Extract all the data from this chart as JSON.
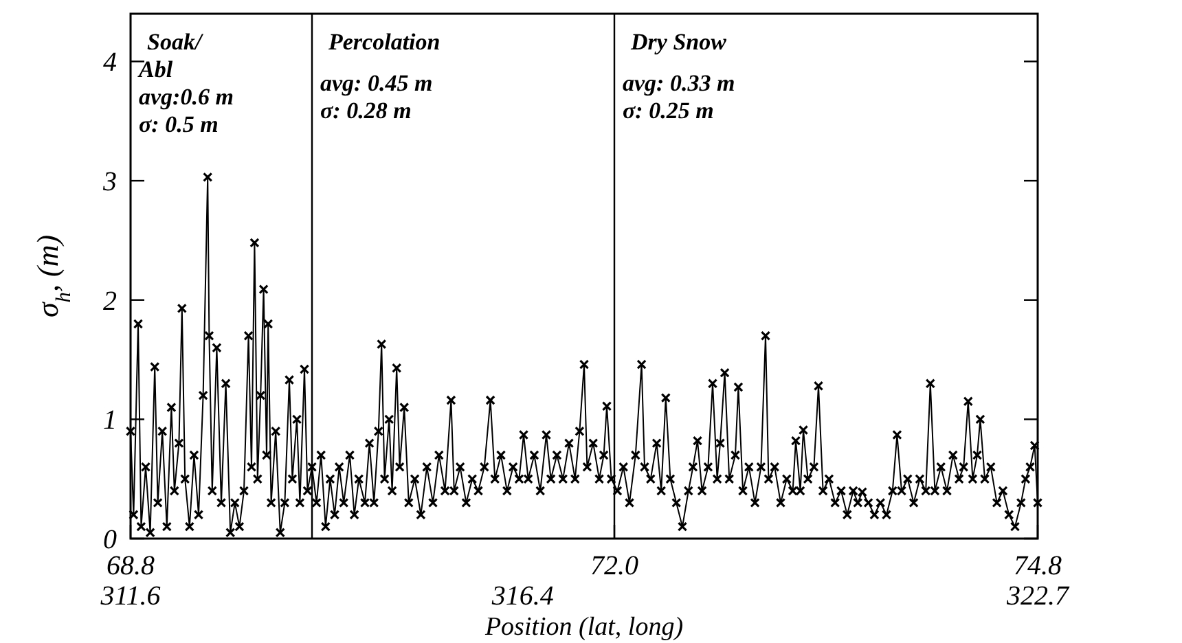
{
  "chart_data": {
    "type": "line",
    "xlabel": "Position (lat, long)",
    "ylabel": "σ$_{h}$, (m)",
    "xlim": [
      68.8,
      74.8
    ],
    "ylim": [
      0,
      4.4
    ],
    "xticks": [
      68.8,
      {
        "value": 72.0,
        "label": "72.0"
      },
      74.8
    ],
    "x2lim": [
      311.6,
      322.7
    ],
    "x2ticks": [
      311.6,
      316.4,
      322.7
    ],
    "yticks": [
      0,
      1,
      2,
      3,
      4
    ],
    "grid": false,
    "marker": "cross",
    "line_style": "solid",
    "ref_lines": [
      {
        "axis": "x",
        "value": 70.0,
        "color": "#000000"
      },
      {
        "axis": "x",
        "value": 72.0,
        "color": "#000000"
      }
    ],
    "annotations": [
      "Soak/\nAbl\navg:0.6 m\nσ: 0.5 m",
      "Percolation\n\navg: 0.45 m\nσ: 0.28 m",
      "Dry Snow\n\navg: 0.33 m\nσ: 0.25 m"
    ],
    "series": [
      {
        "color": "#000000",
        "x": [
          68.8,
          68.82,
          68.85,
          68.87,
          68.9,
          68.93,
          68.96,
          68.98,
          69.01,
          69.04,
          69.07,
          69.09,
          69.12,
          69.14,
          69.16,
          69.19,
          69.22,
          69.25,
          69.28,
          69.31,
          69.32,
          69.34,
          69.37,
          69.4,
          69.43,
          69.46,
          69.49,
          69.52,
          69.55,
          69.58,
          69.6,
          69.62,
          69.64,
          69.66,
          69.68,
          69.7,
          69.71,
          69.73,
          69.76,
          69.79,
          69.82,
          69.85,
          69.87,
          69.9,
          69.92,
          69.95,
          69.97,
          70.0,
          70.03,
          70.06,
          70.09,
          70.12,
          70.15,
          70.18,
          70.21,
          70.25,
          70.28,
          70.31,
          70.35,
          70.38,
          70.41,
          70.44,
          70.46,
          70.48,
          70.51,
          70.53,
          70.56,
          70.58,
          70.61,
          70.64,
          70.68,
          70.72,
          70.76,
          70.8,
          70.84,
          70.88,
          70.92,
          70.94,
          70.98,
          71.02,
          71.06,
          71.1,
          71.14,
          71.18,
          71.21,
          71.25,
          71.29,
          71.33,
          71.37,
          71.4,
          71.43,
          71.47,
          71.51,
          71.55,
          71.58,
          71.62,
          71.66,
          71.7,
          71.74,
          71.77,
          71.8,
          71.82,
          71.86,
          71.9,
          71.93,
          71.95,
          71.98,
          72.02,
          72.06,
          72.1,
          72.14,
          72.18,
          72.2,
          72.24,
          72.28,
          72.31,
          72.34,
          72.37,
          72.41,
          72.45,
          72.49,
          72.52,
          72.55,
          72.58,
          72.62,
          72.65,
          72.68,
          72.7,
          72.73,
          72.76,
          72.8,
          72.82,
          72.85,
          72.89,
          72.93,
          72.97,
          73.0,
          73.02,
          73.06,
          73.1,
          73.14,
          73.18,
          73.2,
          73.23,
          73.25,
          73.28,
          73.32,
          73.35,
          73.38,
          73.42,
          73.46,
          73.5,
          73.54,
          73.58,
          73.61,
          73.64,
          73.68,
          73.72,
          73.76,
          73.8,
          73.84,
          73.87,
          73.9,
          73.94,
          73.98,
          74.02,
          74.06,
          74.09,
          74.12,
          74.16,
          74.2,
          74.24,
          74.28,
          74.31,
          74.34,
          74.37,
          74.4,
          74.42,
          74.45,
          74.49,
          74.53,
          74.57,
          74.61,
          74.65,
          74.69,
          74.72,
          74.75,
          74.78,
          74.8
        ],
        "values": [
          0.9,
          0.2,
          1.8,
          0.1,
          0.6,
          0.05,
          1.44,
          0.3,
          0.9,
          0.1,
          1.1,
          0.4,
          0.8,
          1.93,
          0.5,
          0.1,
          0.7,
          0.2,
          1.2,
          3.03,
          1.7,
          0.4,
          1.6,
          0.3,
          1.3,
          0.05,
          0.3,
          0.1,
          0.4,
          1.7,
          0.6,
          2.48,
          0.5,
          1.2,
          2.09,
          0.7,
          1.8,
          0.3,
          0.9,
          0.05,
          0.3,
          1.33,
          0.5,
          1.0,
          0.3,
          1.42,
          0.4,
          0.6,
          0.3,
          0.7,
          0.1,
          0.5,
          0.2,
          0.6,
          0.3,
          0.7,
          0.2,
          0.5,
          0.3,
          0.8,
          0.3,
          0.9,
          1.63,
          0.5,
          1.0,
          0.4,
          1.43,
          0.6,
          1.1,
          0.3,
          0.5,
          0.2,
          0.6,
          0.3,
          0.7,
          0.4,
          1.16,
          0.4,
          0.6,
          0.3,
          0.5,
          0.4,
          0.6,
          1.16,
          0.5,
          0.7,
          0.4,
          0.6,
          0.5,
          0.87,
          0.5,
          0.7,
          0.4,
          0.87,
          0.5,
          0.7,
          0.5,
          0.8,
          0.5,
          0.9,
          1.46,
          0.6,
          0.8,
          0.5,
          0.7,
          1.11,
          0.5,
          0.4,
          0.6,
          0.3,
          0.7,
          1.46,
          0.6,
          0.5,
          0.8,
          0.4,
          1.18,
          0.5,
          0.3,
          0.1,
          0.4,
          0.6,
          0.82,
          0.4,
          0.6,
          1.3,
          0.5,
          0.8,
          1.39,
          0.5,
          0.7,
          1.27,
          0.4,
          0.6,
          0.3,
          0.6,
          1.7,
          0.5,
          0.6,
          0.3,
          0.5,
          0.4,
          0.82,
          0.4,
          0.91,
          0.5,
          0.6,
          1.28,
          0.4,
          0.5,
          0.3,
          0.4,
          0.2,
          0.4,
          0.3,
          0.39,
          0.3,
          0.2,
          0.3,
          0.2,
          0.4,
          0.87,
          0.4,
          0.5,
          0.3,
          0.5,
          0.4,
          1.3,
          0.4,
          0.6,
          0.4,
          0.7,
          0.5,
          0.6,
          1.15,
          0.5,
          0.7,
          1.0,
          0.5,
          0.6,
          0.3,
          0.4,
          0.2,
          0.1,
          0.3,
          0.5,
          0.6,
          0.78,
          0.3
        ]
      }
    ]
  }
}
